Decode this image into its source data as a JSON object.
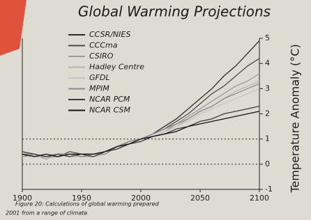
{
  "chart_data": {
    "type": "line",
    "title": "Global Warming Projections",
    "ylabel": "Temperature Anomaly (°C)",
    "caption": [
      "Figure 20: Calculations of global warming prepared",
      "2001 from a range of climate"
    ],
    "x": [
      1900,
      1910,
      1920,
      1930,
      1940,
      1950,
      1960,
      1970,
      1980,
      1990,
      2000,
      2010,
      2020,
      2030,
      2040,
      2050,
      2060,
      2070,
      2080,
      2090,
      2100
    ],
    "xlim": [
      1900,
      2100
    ],
    "xticks": [
      1900,
      1950,
      2000,
      2050,
      2100
    ],
    "ylim": [
      -1,
      5
    ],
    "yticks": [
      -1,
      0,
      1,
      2,
      3,
      4,
      5
    ],
    "hlines": [
      0,
      1
    ],
    "series": [
      {
        "name": "CCSR/NIES",
        "color": "#2b2b2b",
        "values": [
          0.4,
          0.3,
          0.3,
          0.4,
          0.4,
          0.3,
          0.4,
          0.5,
          0.7,
          0.9,
          1.0,
          1.2,
          1.5,
          1.8,
          2.2,
          2.6,
          3.0,
          3.5,
          3.9,
          4.4,
          4.9
        ]
      },
      {
        "name": "CCCma",
        "color": "#4a4a4a",
        "values": [
          0.3,
          0.4,
          0.3,
          0.3,
          0.5,
          0.4,
          0.4,
          0.5,
          0.7,
          0.8,
          1.0,
          1.2,
          1.4,
          1.7,
          2.0,
          2.4,
          2.8,
          3.1,
          3.5,
          3.9,
          4.2
        ]
      },
      {
        "name": "CSIRO",
        "color": "#9a9a9a",
        "values": [
          0.4,
          0.4,
          0.2,
          0.4,
          0.4,
          0.3,
          0.3,
          0.5,
          0.6,
          0.9,
          1.0,
          1.1,
          1.3,
          1.6,
          1.9,
          2.2,
          2.5,
          2.8,
          3.1,
          3.3,
          3.6
        ]
      },
      {
        "name": "Hadley Centre",
        "color": "#b5b5b5",
        "values": [
          0.5,
          0.3,
          0.3,
          0.3,
          0.4,
          0.4,
          0.3,
          0.4,
          0.7,
          0.8,
          0.9,
          1.1,
          1.3,
          1.5,
          1.8,
          2.1,
          2.3,
          2.6,
          2.9,
          3.1,
          3.3
        ]
      },
      {
        "name": "GFDL",
        "color": "#c4c4c4",
        "values": [
          0.3,
          0.3,
          0.4,
          0.4,
          0.3,
          0.3,
          0.4,
          0.5,
          0.6,
          0.8,
          1.0,
          1.1,
          1.3,
          1.5,
          1.7,
          2.0,
          2.2,
          2.4,
          2.6,
          2.8,
          3.0
        ]
      },
      {
        "name": "MPIM",
        "color": "#8a8a8a",
        "values": [
          0.4,
          0.4,
          0.3,
          0.3,
          0.4,
          0.3,
          0.4,
          0.4,
          0.7,
          0.9,
          1.0,
          1.2,
          1.4,
          1.6,
          1.8,
          2.1,
          2.3,
          2.6,
          2.8,
          3.0,
          3.2
        ]
      },
      {
        "name": "NCAR PCM",
        "color": "#3a3a3a",
        "values": [
          0.5,
          0.4,
          0.3,
          0.4,
          0.3,
          0.4,
          0.3,
          0.5,
          0.6,
          0.8,
          0.9,
          1.1,
          1.2,
          1.4,
          1.5,
          1.7,
          1.8,
          2.0,
          2.1,
          2.2,
          2.3
        ]
      },
      {
        "name": "NCAR CSM",
        "color": "#111111",
        "values": [
          0.4,
          0.3,
          0.4,
          0.3,
          0.4,
          0.4,
          0.4,
          0.5,
          0.7,
          0.8,
          1.0,
          1.1,
          1.2,
          1.3,
          1.5,
          1.6,
          1.7,
          1.8,
          1.9,
          2.0,
          2.1
        ]
      }
    ]
  }
}
